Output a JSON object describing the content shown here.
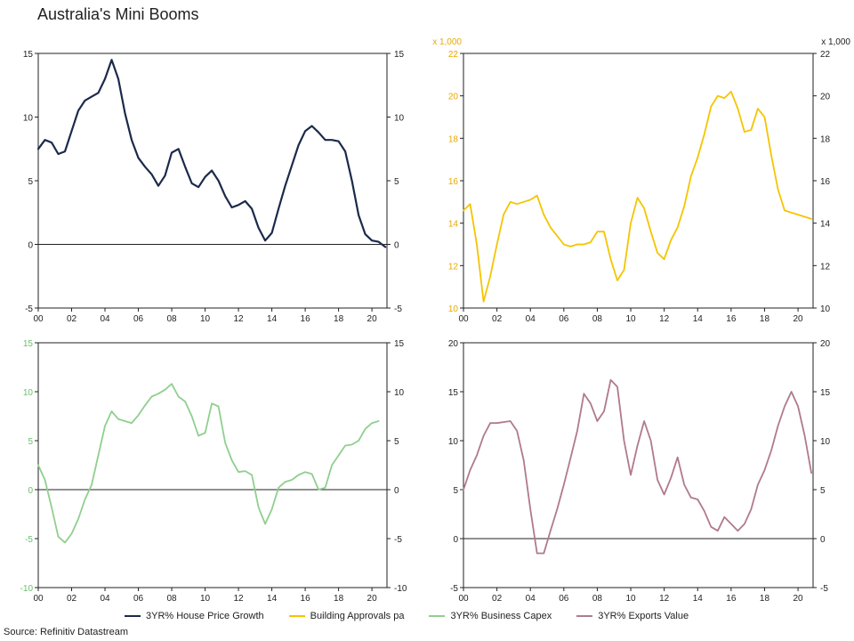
{
  "title": "Australia's Mini Booms",
  "source": "Source: Refinitiv Datastream",
  "x_tick_labels": [
    "00",
    "02",
    "04",
    "06",
    "08",
    "10",
    "12",
    "14",
    "16",
    "18",
    "20"
  ],
  "chart_data": [
    {
      "type": "line",
      "name": "3YR% House Price Growth",
      "color": "#1b2a4a",
      "ylim": [
        -5,
        15
      ],
      "yticks": [
        -5,
        0,
        5,
        10,
        15
      ],
      "tick_color": "#222222",
      "zero_line": true,
      "xlim": [
        2000,
        2020.9
      ],
      "x": [
        2000.0,
        2000.4,
        2000.8,
        2001.2,
        2001.6,
        2002.0,
        2002.4,
        2002.8,
        2003.2,
        2003.6,
        2004.0,
        2004.4,
        2004.8,
        2005.2,
        2005.6,
        2006.0,
        2006.4,
        2006.8,
        2007.2,
        2007.6,
        2008.0,
        2008.4,
        2008.8,
        2009.2,
        2009.6,
        2010.0,
        2010.4,
        2010.8,
        2011.2,
        2011.6,
        2012.0,
        2012.4,
        2012.8,
        2013.2,
        2013.6,
        2014.0,
        2014.4,
        2014.8,
        2015.2,
        2015.6,
        2016.0,
        2016.4,
        2016.8,
        2017.2,
        2017.6,
        2018.0,
        2018.4,
        2018.8,
        2019.2,
        2019.6,
        2020.0,
        2020.4,
        2020.8
      ],
      "values": [
        7.5,
        8.2,
        8.0,
        7.1,
        7.3,
        8.9,
        10.5,
        11.3,
        11.6,
        11.9,
        13.0,
        14.5,
        13.0,
        10.3,
        8.2,
        6.8,
        6.1,
        5.5,
        4.6,
        5.4,
        7.2,
        7.5,
        6.1,
        4.8,
        4.5,
        5.3,
        5.8,
        5.0,
        3.8,
        2.9,
        3.1,
        3.4,
        2.8,
        1.3,
        0.3,
        0.9,
        2.8,
        4.6,
        6.2,
        7.8,
        8.9,
        9.3,
        8.8,
        8.2,
        8.2,
        8.1,
        7.3,
        5.0,
        2.3,
        0.8,
        0.3,
        0.2,
        -0.2
      ]
    },
    {
      "type": "line",
      "name": "Building Approvals pa",
      "color": "#f5c400",
      "ylim": [
        10,
        22
      ],
      "yticks": [
        10,
        12,
        14,
        16,
        18,
        20,
        22
      ],
      "unit": "x 1,000",
      "tick_color": "#e8a800",
      "tick_color_right": "#222222",
      "zero_line": false,
      "xlim": [
        2000,
        2020.9
      ],
      "x": [
        2000.0,
        2000.4,
        2000.8,
        2001.2,
        2001.6,
        2002.0,
        2002.4,
        2002.8,
        2003.2,
        2003.6,
        2004.0,
        2004.4,
        2004.8,
        2005.2,
        2005.6,
        2006.0,
        2006.4,
        2006.8,
        2007.2,
        2007.6,
        2008.0,
        2008.4,
        2008.8,
        2009.2,
        2009.6,
        2010.0,
        2010.4,
        2010.8,
        2011.2,
        2011.6,
        2012.0,
        2012.4,
        2012.8,
        2013.2,
        2013.6,
        2014.0,
        2014.4,
        2014.8,
        2015.2,
        2015.6,
        2016.0,
        2016.4,
        2016.8,
        2017.2,
        2017.6,
        2018.0,
        2018.4,
        2018.8,
        2019.2,
        2019.6,
        2020.0,
        2020.4,
        2020.8
      ],
      "values": [
        14.6,
        14.9,
        13.0,
        10.3,
        11.5,
        13.0,
        14.4,
        15.0,
        14.9,
        15.0,
        15.1,
        15.3,
        14.4,
        13.8,
        13.4,
        13.0,
        12.9,
        13.0,
        13.0,
        13.1,
        13.6,
        13.6,
        12.3,
        11.3,
        11.8,
        14.0,
        15.2,
        14.7,
        13.6,
        12.6,
        12.3,
        13.2,
        13.8,
        14.8,
        16.2,
        17.1,
        18.2,
        19.5,
        20.0,
        19.9,
        20.2,
        19.4,
        18.3,
        18.4,
        19.4,
        19.0,
        17.2,
        15.6,
        14.6,
        14.5,
        14.4,
        14.3,
        14.2
      ]
    },
    {
      "type": "line",
      "name": "3YR% Business Capex",
      "color": "#8fcf8f",
      "ylim": [
        -10,
        15
      ],
      "yticks": [
        -10,
        -5,
        0,
        5,
        10,
        15
      ],
      "tick_color": "#6abf6a",
      "tick_color_right": "#222222",
      "zero_line": true,
      "xlim": [
        2000,
        2020.9
      ],
      "x": [
        2000.0,
        2000.4,
        2000.8,
        2001.2,
        2001.6,
        2002.0,
        2002.4,
        2002.8,
        2003.2,
        2003.6,
        2004.0,
        2004.4,
        2004.8,
        2005.2,
        2005.6,
        2006.0,
        2006.4,
        2006.8,
        2007.2,
        2007.6,
        2008.0,
        2008.4,
        2008.8,
        2009.2,
        2009.6,
        2010.0,
        2010.4,
        2010.8,
        2011.2,
        2011.6,
        2012.0,
        2012.4,
        2012.8,
        2013.2,
        2013.6,
        2014.0,
        2014.4,
        2014.8,
        2015.2,
        2015.6,
        2016.0,
        2016.4,
        2016.8,
        2017.2,
        2017.6,
        2018.0,
        2018.4,
        2018.8,
        2019.2,
        2019.6,
        2020.0,
        2020.4
      ],
      "values": [
        2.5,
        1.0,
        -1.8,
        -4.8,
        -5.4,
        -4.5,
        -3.0,
        -1.0,
        0.5,
        3.5,
        6.5,
        8.0,
        7.2,
        7.0,
        6.8,
        7.6,
        8.6,
        9.5,
        9.8,
        10.2,
        10.8,
        9.5,
        9.0,
        7.5,
        5.5,
        5.8,
        8.8,
        8.5,
        4.8,
        3.0,
        1.8,
        1.9,
        1.5,
        -1.8,
        -3.5,
        -2.0,
        0.2,
        0.8,
        1.0,
        1.5,
        1.8,
        1.6,
        0.0,
        0.2,
        2.5,
        3.5,
        4.5,
        4.6,
        5.0,
        6.2,
        6.8,
        7.0
      ]
    },
    {
      "type": "line",
      "name": "3YR% Exports Value",
      "color": "#b07a8a",
      "ylim": [
        -5,
        20
      ],
      "yticks": [
        -5,
        0,
        5,
        10,
        15,
        20
      ],
      "tick_color": "#222222",
      "zero_line": true,
      "xlim": [
        2000,
        2020.9
      ],
      "x": [
        2000.0,
        2000.4,
        2000.8,
        2001.2,
        2001.6,
        2002.0,
        2002.4,
        2002.8,
        2003.2,
        2003.6,
        2004.0,
        2004.4,
        2004.8,
        2005.2,
        2005.6,
        2006.0,
        2006.4,
        2006.8,
        2007.2,
        2007.6,
        2008.0,
        2008.4,
        2008.8,
        2009.2,
        2009.6,
        2010.0,
        2010.4,
        2010.8,
        2011.2,
        2011.6,
        2012.0,
        2012.4,
        2012.8,
        2013.2,
        2013.6,
        2014.0,
        2014.4,
        2014.8,
        2015.2,
        2015.6,
        2016.0,
        2016.4,
        2016.8,
        2017.2,
        2017.6,
        2018.0,
        2018.4,
        2018.8,
        2019.2,
        2019.6,
        2020.0,
        2020.4,
        2020.8
      ],
      "values": [
        5.0,
        7.0,
        8.5,
        10.5,
        11.8,
        11.8,
        11.9,
        12.0,
        11.0,
        8.0,
        3.0,
        -1.5,
        -1.5,
        0.8,
        3.0,
        5.5,
        8.2,
        11.0,
        14.8,
        13.8,
        12.0,
        13.0,
        16.2,
        15.5,
        10.0,
        6.5,
        9.5,
        12.0,
        10.0,
        6.0,
        4.5,
        6.2,
        8.3,
        5.5,
        4.2,
        4.0,
        2.8,
        1.2,
        0.8,
        2.2,
        1.5,
        0.8,
        1.5,
        3.0,
        5.5,
        7.0,
        9.0,
        11.5,
        13.5,
        15.0,
        13.5,
        10.5,
        6.7
      ]
    }
  ]
}
